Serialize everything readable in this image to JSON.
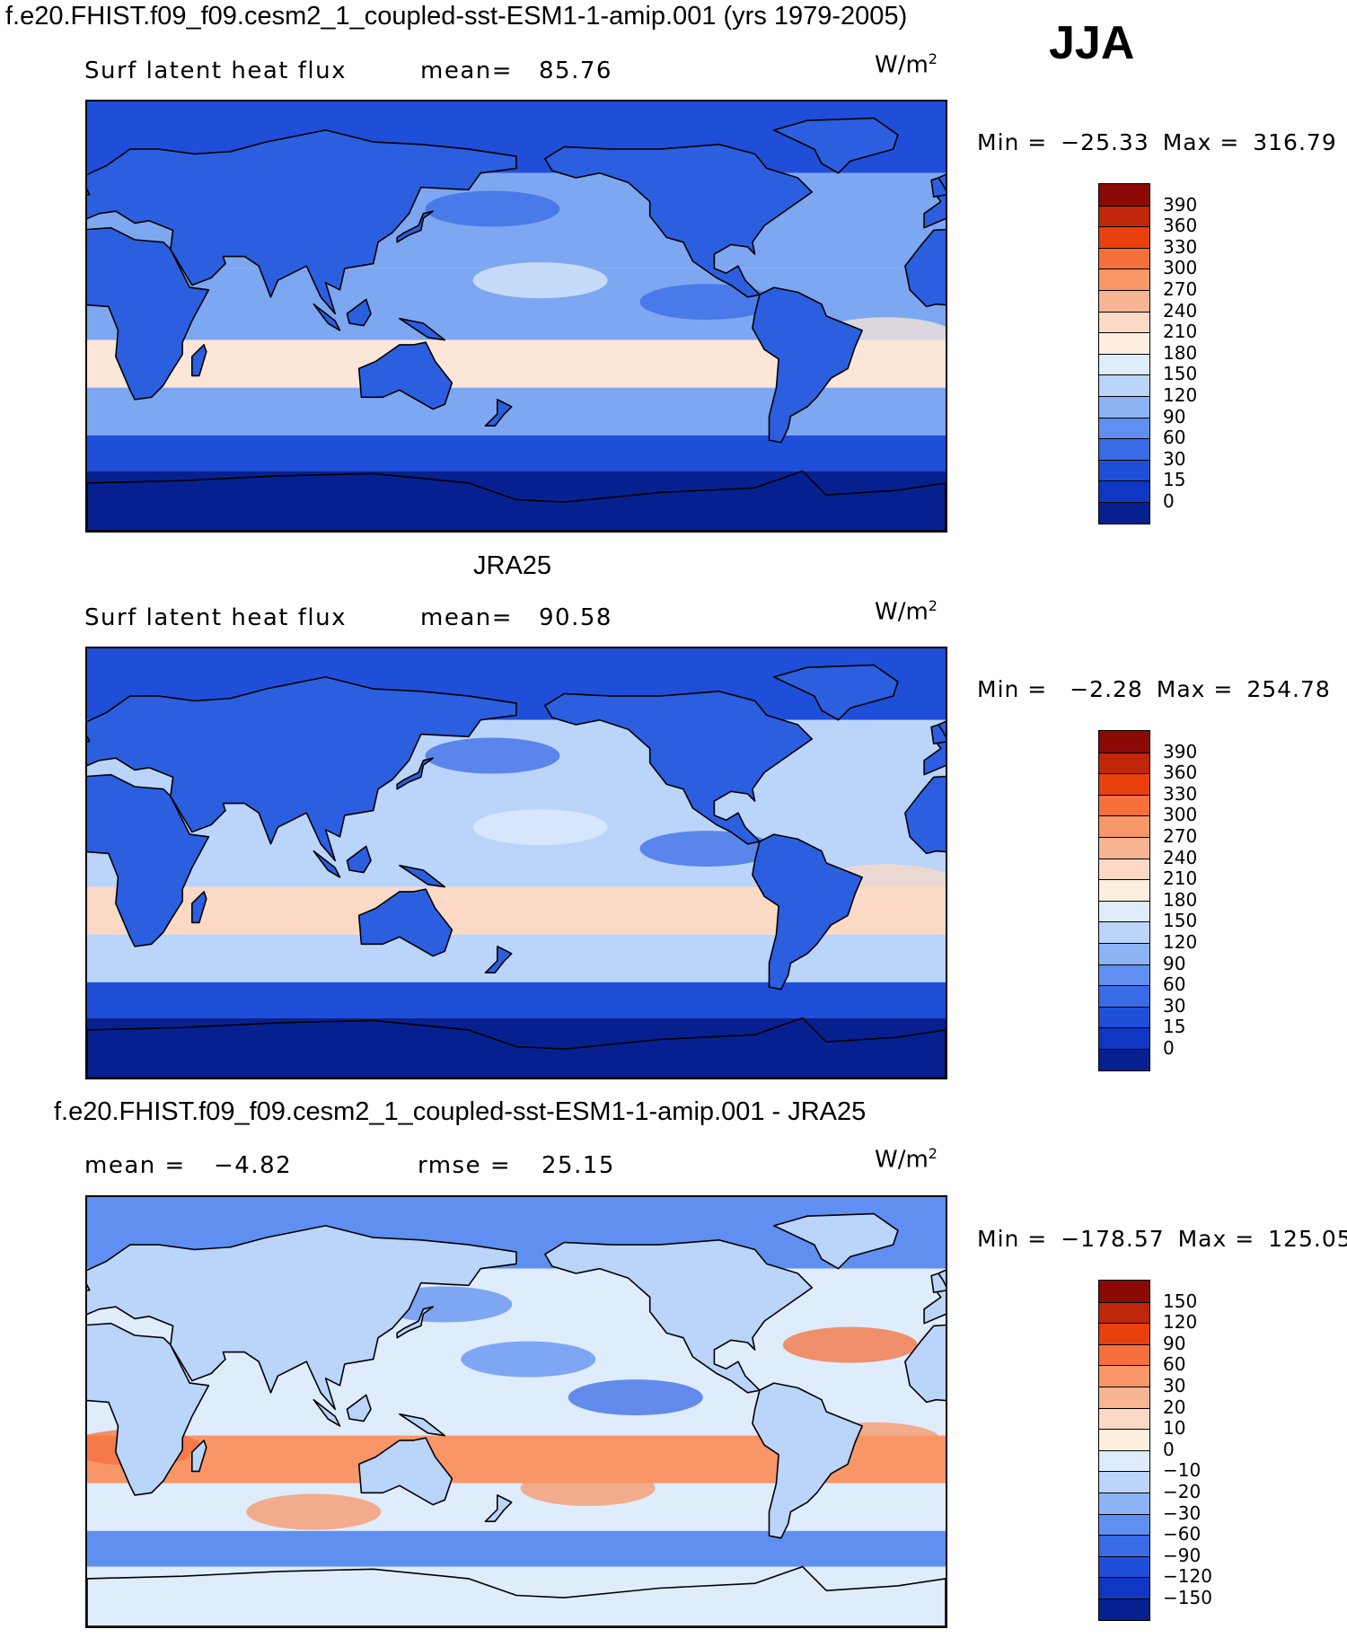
{
  "title": "f.e20.FHIST.f09_f09.cesm2_1_coupled-sst-ESM1-1-amip.001 (yrs 1979-2005)",
  "season": "JJA",
  "chart_data": [
    {
      "type": "heatmap",
      "panel": "model",
      "heading": "",
      "variable": "Surf latent heat flux",
      "stat_label": "mean=",
      "stat_value": "85.76",
      "units": "W/m",
      "units_exp": "2",
      "min_label": "Min =",
      "min_value": "−25.33",
      "max_label": "Max =",
      "max_value": "316.79",
      "colorbar": {
        "levels": [
          "390",
          "360",
          "330",
          "300",
          "270",
          "240",
          "210",
          "180",
          "150",
          "120",
          "90",
          "60",
          "30",
          "15",
          "0"
        ],
        "colors": [
          "#8b0a06",
          "#c0260a",
          "#e8410e",
          "#f6703c",
          "#f89667",
          "#f7b594",
          "#fbd9c5",
          "#fcefe0",
          "#dfecfb",
          "#bad4fa",
          "#8db3f5",
          "#5f8ff0",
          "#3a6be6",
          "#1f4ed8",
          "#0f37c4",
          "#06218f"
        ]
      },
      "field_colors": {
        "land": "#2b5fdf",
        "ocean_mid": "#7ea7f2",
        "ocean_warm": "#fce6d8",
        "polar": "#06218f",
        "high_lat": "#1f4ed8"
      }
    },
    {
      "type": "heatmap",
      "panel": "obs",
      "heading": "JRA25",
      "variable": "Surf latent heat flux",
      "stat_label": "mean=",
      "stat_value": "90.58",
      "units": "W/m",
      "units_exp": "2",
      "min_label": "Min =",
      "min_value": "−2.28",
      "max_label": "Max =",
      "max_value": "254.78",
      "colorbar": {
        "levels": [
          "390",
          "360",
          "330",
          "300",
          "270",
          "240",
          "210",
          "180",
          "150",
          "120",
          "90",
          "60",
          "30",
          "15",
          "0"
        ],
        "colors": [
          "#8b0a06",
          "#c0260a",
          "#e8410e",
          "#f6703c",
          "#f89667",
          "#f7b594",
          "#fbd9c5",
          "#fcefe0",
          "#dfecfb",
          "#bad4fa",
          "#8db3f5",
          "#5f8ff0",
          "#3a6be6",
          "#1f4ed8",
          "#0f37c4",
          "#06218f"
        ]
      },
      "field_colors": {
        "land": "#2b5fdf",
        "ocean_mid": "#bad4fa",
        "ocean_warm": "#fbd9c5",
        "polar": "#06218f",
        "high_lat": "#1f4ed8"
      }
    },
    {
      "type": "heatmap",
      "panel": "difference",
      "heading": "f.e20.FHIST.f09_f09.cesm2_1_coupled-sst-ESM1-1-amip.001 - JRA25",
      "variable": "mean =",
      "stat_label": "",
      "stat_value": "−4.82",
      "rmse_label": "rmse =",
      "rmse_value": "25.15",
      "units": "W/m",
      "units_exp": "2",
      "min_label": "Min =",
      "min_value": "−178.57",
      "max_label": "Max =",
      "max_value": "125.05",
      "colorbar": {
        "levels": [
          "150",
          "120",
          "90",
          "60",
          "30",
          "20",
          "10",
          "0",
          "−10",
          "−20",
          "−30",
          "−60",
          "−90",
          "−120",
          "−150"
        ],
        "colors": [
          "#8b0a06",
          "#c0260a",
          "#e8410e",
          "#f6703c",
          "#f89667",
          "#f7b594",
          "#fbd9c5",
          "#fcefe0",
          "#dfecfb",
          "#bad4fa",
          "#8db3f5",
          "#5f8ff0",
          "#3a6be6",
          "#1f4ed8",
          "#0f37c4",
          "#06218f"
        ]
      },
      "field_colors": {
        "land": "#bad4fa",
        "ocean_mid": "#dfecfb",
        "ocean_warm": "#f89667",
        "polar": "#dfecfb",
        "high_lat": "#5f8ff0"
      }
    }
  ]
}
